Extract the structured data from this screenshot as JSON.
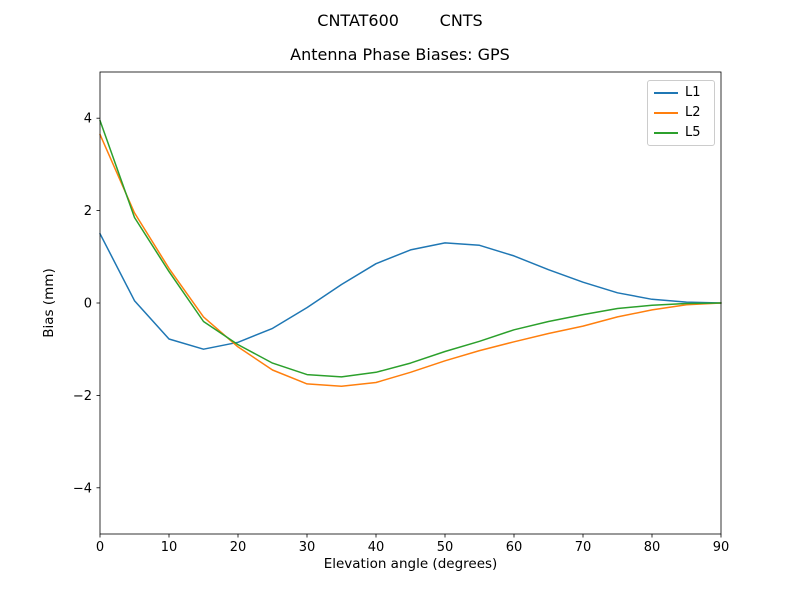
{
  "figure": {
    "suptitle": "CNTAT600        CNTS",
    "axes_title": "Antenna Phase Biases: GPS"
  },
  "chart_data": {
    "type": "line",
    "title": "Antenna Phase Biases: GPS",
    "suptitle": "CNTAT600        CNTS",
    "xlabel": "Elevation angle (degrees)",
    "ylabel": "Bias (mm)",
    "xlim": [
      0,
      90
    ],
    "ylim": [
      -5,
      5
    ],
    "x_ticks": [
      0,
      10,
      20,
      30,
      40,
      50,
      60,
      70,
      80,
      90
    ],
    "y_ticks": [
      -4,
      -2,
      0,
      2,
      4
    ],
    "grid": false,
    "legend_position": "upper right",
    "x": [
      0,
      5,
      10,
      15,
      20,
      25,
      30,
      35,
      40,
      45,
      50,
      55,
      60,
      65,
      70,
      75,
      80,
      85,
      90
    ],
    "series": [
      {
        "name": "L1",
        "color": "#1f77b4",
        "values": [
          1.5,
          0.05,
          -0.78,
          -1.0,
          -0.85,
          -0.55,
          -0.1,
          0.4,
          0.85,
          1.15,
          1.3,
          1.25,
          1.02,
          0.72,
          0.45,
          0.22,
          0.08,
          0.02,
          0.0
        ]
      },
      {
        "name": "L2",
        "color": "#ff7f0e",
        "values": [
          3.65,
          1.95,
          0.75,
          -0.3,
          -0.95,
          -1.45,
          -1.75,
          -1.8,
          -1.72,
          -1.5,
          -1.25,
          -1.03,
          -0.84,
          -0.66,
          -0.5,
          -0.3,
          -0.15,
          -0.04,
          0.0
        ]
      },
      {
        "name": "L5",
        "color": "#2ca02c",
        "values": [
          3.95,
          1.85,
          0.68,
          -0.4,
          -0.9,
          -1.3,
          -1.55,
          -1.6,
          -1.5,
          -1.3,
          -1.05,
          -0.83,
          -0.58,
          -0.4,
          -0.25,
          -0.12,
          -0.05,
          -0.01,
          0.0
        ]
      }
    ]
  }
}
